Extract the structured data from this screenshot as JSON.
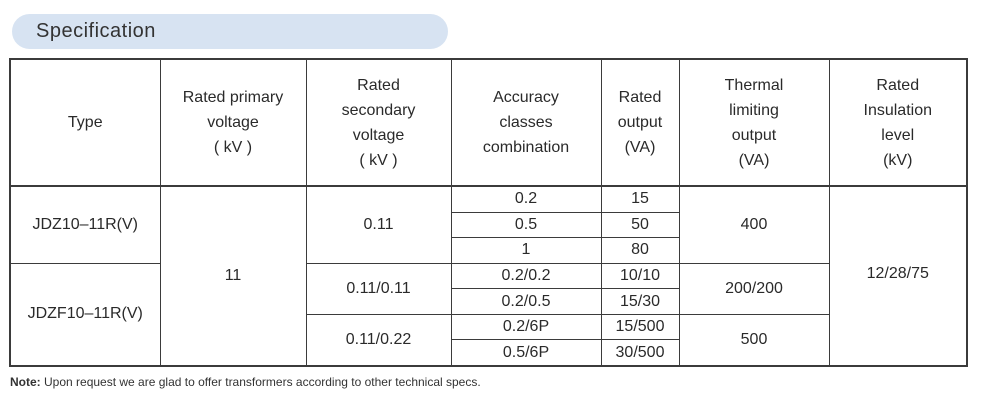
{
  "section_title": "Specification",
  "headers": {
    "type": "Type",
    "primary_voltage": [
      "Rated primary",
      "voltage",
      "( kV )"
    ],
    "secondary_voltage": [
      "Rated",
      "secondary",
      "voltage",
      "( kV )"
    ],
    "accuracy": [
      "Accuracy",
      "classes",
      "combination"
    ],
    "rated_output": [
      "Rated",
      "output",
      "(VA)"
    ],
    "thermal_output": [
      "Thermal",
      "limiting",
      "output",
      "(VA)"
    ],
    "insulation": [
      "Rated",
      "Insulation",
      "level",
      "(kV)"
    ]
  },
  "types": [
    "JDZ10–11R(V)",
    "JDZF10–11R(V)"
  ],
  "primary_voltage": "11",
  "secondary_voltages": [
    "0.11",
    "0.11/0.11",
    "0.11/0.22"
  ],
  "accuracy_classes": [
    "0.2",
    "0.5",
    "1",
    "0.2/0.2",
    "0.2/0.5",
    "0.2/6P",
    "0.5/6P"
  ],
  "rated_outputs": [
    "15",
    "50",
    "80",
    "10/10",
    "15/30",
    "15/500",
    "30/500"
  ],
  "thermal_outputs": [
    "400",
    "200/200",
    "500"
  ],
  "insulation_level": "12/28/75",
  "note": {
    "label": "Note:",
    "text": " Upon request we are glad to offer transformers according to other technical specs."
  }
}
